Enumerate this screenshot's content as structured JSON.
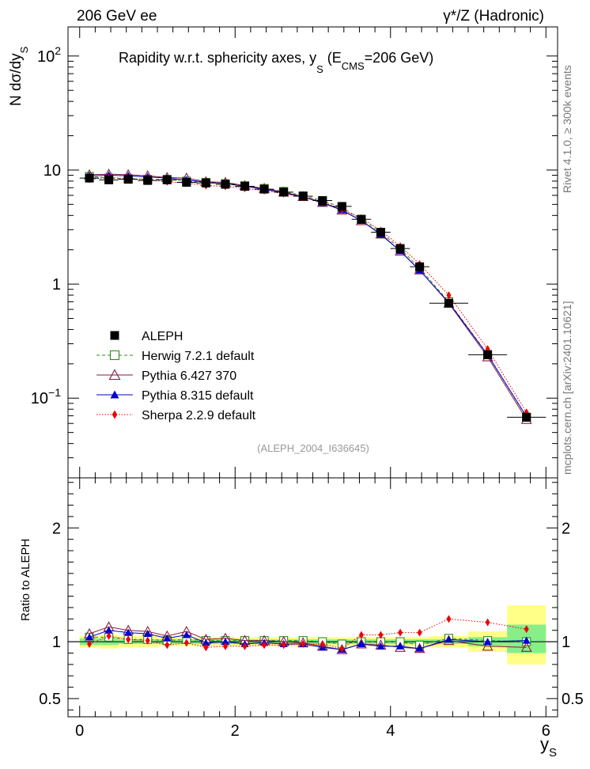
{
  "header": {
    "left_label": "206 GeV ee",
    "right_label": "γ*/Z (Hadronic)",
    "side_label_top": "Rivet 4.1.0, ≥ 300k events",
    "side_label_bottom": "mcplots.cern.ch [arXiv:2401.10621]"
  },
  "chart_data": {
    "type": "scatter",
    "title": "Rapidity w.r.t. sphericity axes, y_S (E_CMS=206 GeV)",
    "title_parts": {
      "main": "Rapidity w.r.t. sphericity axes, y",
      "sub_s": "S",
      "paren_open": " (E",
      "sub_cms": "CMS",
      "paren_close": "=206 GeV)"
    },
    "watermark": "(ALEPH_2004_I636645)",
    "xlabel": {
      "main": "y",
      "sub": "S"
    },
    "ylabel_main": {
      "prefix": "N  dσ/dy",
      "sub": "S"
    },
    "ylabel_ratio": "Ratio to ALEPH",
    "xlim": [
      -0.15,
      6.15
    ],
    "ylim_main": [
      0.02,
      180
    ],
    "ylim_ratio": [
      0.34,
      2.44
    ],
    "x_ticks": [
      "0",
      "2",
      "4",
      "6"
    ],
    "y_ticks_main": [
      "10⁻¹",
      "1",
      "10",
      "10²"
    ],
    "y_ticks_ratio": [
      "0.5",
      "1",
      "2"
    ],
    "x": [
      0.125,
      0.375,
      0.625,
      0.875,
      1.125,
      1.375,
      1.625,
      1.875,
      2.125,
      2.375,
      2.625,
      2.875,
      3.125,
      3.375,
      3.625,
      3.875,
      4.125,
      4.375,
      4.75,
      5.25,
      5.75
    ],
    "xerr": [
      0.125,
      0.125,
      0.125,
      0.125,
      0.125,
      0.125,
      0.125,
      0.125,
      0.125,
      0.125,
      0.125,
      0.125,
      0.125,
      0.125,
      0.125,
      0.125,
      0.125,
      0.125,
      0.25,
      0.25,
      0.25
    ],
    "band_total": [
      [
        0.95,
        1.05
      ],
      [
        0.94,
        1.06
      ],
      [
        0.95,
        1.05
      ],
      [
        0.95,
        1.05
      ],
      [
        0.96,
        1.04
      ],
      [
        0.96,
        1.04
      ],
      [
        0.96,
        1.04
      ],
      [
        0.96,
        1.04
      ],
      [
        0.96,
        1.04
      ],
      [
        0.96,
        1.04
      ],
      [
        0.96,
        1.04
      ],
      [
        0.96,
        1.04
      ],
      [
        0.96,
        1.04
      ],
      [
        0.96,
        1.04
      ],
      [
        0.96,
        1.04
      ],
      [
        0.96,
        1.04
      ],
      [
        0.96,
        1.04
      ],
      [
        0.96,
        1.04
      ],
      [
        0.95,
        1.05
      ],
      [
        0.91,
        1.09
      ],
      [
        0.8,
        1.32
      ]
    ],
    "band_stat": [
      [
        0.97,
        1.03
      ],
      [
        0.97,
        1.03
      ],
      [
        0.98,
        1.02
      ],
      [
        0.98,
        1.02
      ],
      [
        0.98,
        1.02
      ],
      [
        0.98,
        1.02
      ],
      [
        0.98,
        1.02
      ],
      [
        0.98,
        1.02
      ],
      [
        0.98,
        1.02
      ],
      [
        0.98,
        1.02
      ],
      [
        0.98,
        1.02
      ],
      [
        0.98,
        1.02
      ],
      [
        0.98,
        1.02
      ],
      [
        0.98,
        1.02
      ],
      [
        0.98,
        1.02
      ],
      [
        0.98,
        1.02
      ],
      [
        0.98,
        1.02
      ],
      [
        0.98,
        1.02
      ],
      [
        0.98,
        1.02
      ],
      [
        0.96,
        1.04
      ],
      [
        0.9,
        1.15
      ]
    ],
    "series": [
      {
        "name": "ALEPH",
        "color": "#000000",
        "marker": "square-filled",
        "line": "none",
        "values": [
          8.5,
          8.2,
          8.3,
          8.1,
          8.2,
          7.8,
          7.7,
          7.5,
          7.2,
          6.8,
          6.4,
          5.9,
          5.4,
          4.8,
          3.7,
          2.85,
          2.05,
          1.42,
          0.68,
          0.24,
          0.068
        ],
        "ratio": [
          1,
          1,
          1,
          1,
          1,
          1,
          1,
          1,
          1,
          1,
          1,
          1,
          1,
          1,
          1,
          1,
          1,
          1,
          1,
          1,
          1
        ]
      },
      {
        "name": "Herwig 7.2.1 default",
        "color": "#2e8b1f",
        "marker": "square-open",
        "line": "dashed",
        "values": [
          8.8,
          8.5,
          8.4,
          8.3,
          8.3,
          8.0,
          7.8,
          7.6,
          7.3,
          6.9,
          6.5,
          5.95,
          5.4,
          4.7,
          3.7,
          2.85,
          2.05,
          1.38,
          0.7,
          0.242,
          0.068
        ],
        "ratio": [
          1.04,
          1.04,
          1.02,
          1.02,
          1.01,
          1.02,
          1.01,
          1.01,
          1.01,
          1.01,
          1.01,
          1.01,
          1.0,
          0.98,
          1.0,
          1.0,
          1.0,
          0.97,
          1.03,
          1.01,
          1.0
        ]
      },
      {
        "name": "Pythia 6.427 370",
        "color": "#8b1a3a",
        "marker": "triangle-open",
        "line": "solid",
        "values": [
          9.1,
          9.2,
          9.1,
          8.9,
          8.6,
          8.5,
          7.9,
          7.8,
          7.3,
          6.9,
          6.4,
          5.85,
          5.2,
          4.45,
          3.6,
          2.75,
          1.95,
          1.33,
          0.68,
          0.23,
          0.065
        ],
        "ratio": [
          1.07,
          1.13,
          1.1,
          1.09,
          1.05,
          1.09,
          1.02,
          1.03,
          1.01,
          1.01,
          1.0,
          0.99,
          0.96,
          0.93,
          0.98,
          0.97,
          0.95,
          0.94,
          1.01,
          0.96,
          0.95
        ]
      },
      {
        "name": "Pythia 8.315 default",
        "color": "#0000cc",
        "marker": "triangle-filled",
        "line": "solid",
        "values": [
          8.9,
          9.0,
          8.9,
          8.7,
          8.5,
          8.2,
          7.8,
          7.6,
          7.2,
          6.8,
          6.3,
          5.8,
          5.15,
          4.45,
          3.6,
          2.72,
          1.95,
          1.32,
          0.69,
          0.24,
          0.069
        ],
        "ratio": [
          1.04,
          1.1,
          1.08,
          1.07,
          1.03,
          1.06,
          0.99,
          1.0,
          0.98,
          0.99,
          0.98,
          0.98,
          0.95,
          0.93,
          0.98,
          0.96,
          0.96,
          0.94,
          1.02,
          1.0,
          1.01
        ]
      },
      {
        "name": "Sherpa 2.2.9 default",
        "color": "#ee0000",
        "marker": "diamond-filled",
        "line": "dotted",
        "values": [
          8.3,
          8.6,
          8.4,
          8.2,
          7.9,
          7.7,
          7.3,
          7.2,
          6.9,
          6.6,
          6.2,
          5.8,
          5.3,
          4.5,
          3.8,
          2.95,
          2.15,
          1.5,
          0.8,
          0.27,
          0.075
        ],
        "ratio": [
          0.98,
          1.05,
          1.02,
          1.01,
          0.97,
          0.99,
          0.95,
          0.96,
          0.96,
          0.97,
          0.97,
          0.98,
          0.98,
          0.94,
          1.06,
          1.06,
          1.08,
          1.08,
          1.2,
          1.17,
          1.11
        ]
      }
    ]
  }
}
